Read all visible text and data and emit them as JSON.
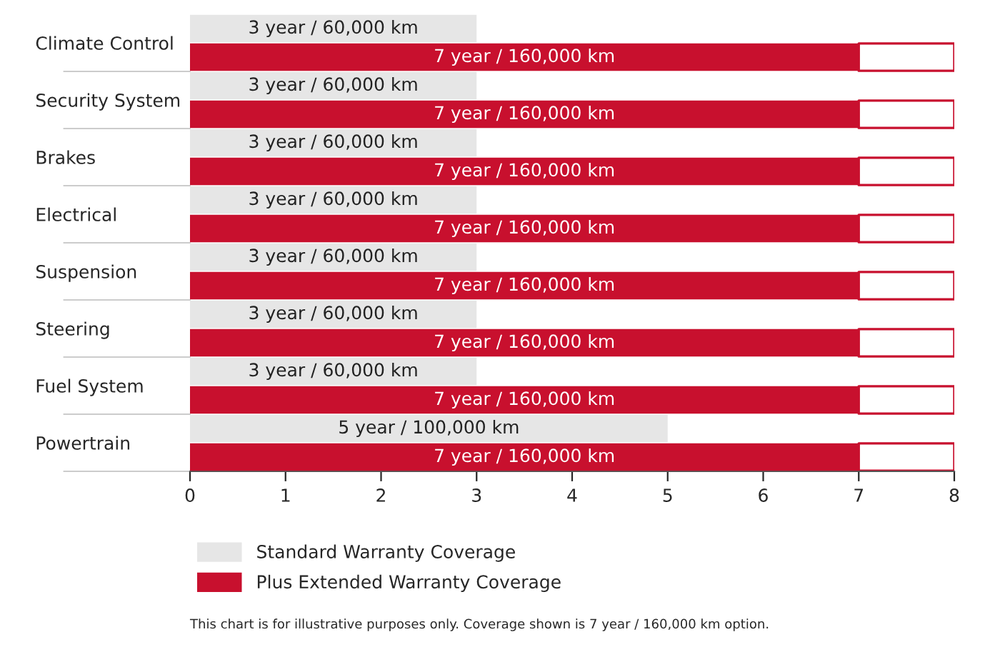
{
  "chart_data": {
    "type": "bar",
    "orientation": "horizontal",
    "categories": [
      "Climate Control",
      "Security System",
      "Brakes",
      "Electrical",
      "Suspension",
      "Steering",
      "Fuel System",
      "Powertrain"
    ],
    "series": [
      {
        "name": "Standard Warranty Coverage",
        "color": "#e6e6e6",
        "values": [
          3,
          3,
          3,
          3,
          3,
          3,
          3,
          5
        ],
        "value_labels": [
          "3 year / 60,000 km",
          "3 year / 60,000 km",
          "3 year / 60,000 km",
          "3 year / 60,000 km",
          "3 year / 60,000 km",
          "3 year / 60,000 km",
          "3 year / 60,000 km",
          "5 year / 100,000 km"
        ]
      },
      {
        "name": "Plus Extended Warranty Coverage",
        "color": "#c8102e",
        "values": [
          7,
          7,
          7,
          7,
          7,
          7,
          7,
          7
        ],
        "value_labels": [
          "7 year / 160,000 km",
          "7 year / 160,000 km",
          "7 year / 160,000 km",
          "7 year / 160,000 km",
          "7 year / 160,000 km",
          "7 year / 160,000 km",
          "7 year / 160,000 km",
          "7 year / 160,000 km"
        ]
      }
    ],
    "xlim": [
      0,
      8
    ],
    "xticks": [
      0,
      1,
      2,
      3,
      4,
      5,
      6,
      7,
      8
    ],
    "grid": false,
    "legend": "bottom",
    "annotations": [
      "This chart is for illustrative purposes only. Coverage shown is 7 year / 160,000 km option."
    ]
  }
}
